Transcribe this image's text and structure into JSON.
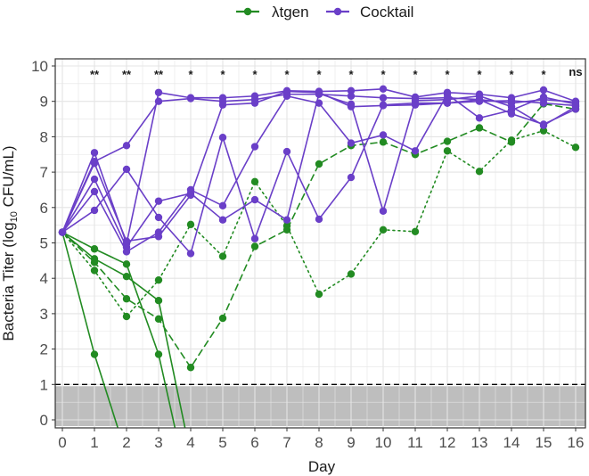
{
  "chart_data": {
    "type": "line",
    "xlabel": "Day",
    "ylabel_main": "Bacteria Titer (",
    "ylabel_log": "log",
    "ylabel_sub": "10",
    "ylabel_tail": " CFU/mL)",
    "xlim": [
      0,
      16
    ],
    "ylim": [
      0,
      10
    ],
    "x_ticks": [
      0,
      1,
      2,
      3,
      4,
      5,
      6,
      7,
      8,
      9,
      10,
      11,
      12,
      13,
      14,
      15,
      16
    ],
    "y_ticks": [
      0,
      1,
      2,
      3,
      4,
      5,
      6,
      7,
      8,
      9,
      10
    ],
    "detection_limit": 1,
    "below_limit_band": [
      0,
      0.95
    ],
    "grid": true,
    "legend_position": "top",
    "colors": {
      "green": "#228B22",
      "purple": "#6A3FC8",
      "band": "#BEBEBE",
      "limit_line": "#000000"
    },
    "legend": [
      {
        "name": "λtgen",
        "color": "#228B22"
      },
      {
        "name": "Cocktail",
        "color": "#6A3FC8"
      }
    ],
    "significance": [
      {
        "day": 1,
        "label": "**"
      },
      {
        "day": 2,
        "label": "**"
      },
      {
        "day": 3,
        "label": "**"
      },
      {
        "day": 4,
        "label": "*"
      },
      {
        "day": 5,
        "label": "*"
      },
      {
        "day": 6,
        "label": "*"
      },
      {
        "day": 7,
        "label": "*"
      },
      {
        "day": 8,
        "label": "*"
      },
      {
        "day": 9,
        "label": "*"
      },
      {
        "day": 10,
        "label": "*"
      },
      {
        "day": 11,
        "label": "*"
      },
      {
        "day": 12,
        "label": "*"
      },
      {
        "day": 13,
        "label": "*"
      },
      {
        "day": 14,
        "label": "*"
      },
      {
        "day": 15,
        "label": "*"
      },
      {
        "day": 16,
        "label": "ns"
      }
    ],
    "series": [
      {
        "group": "λtgen",
        "style": "solid",
        "x": [
          0,
          1,
          2
        ],
        "y": [
          5.3,
          1.85,
          -1.0
        ],
        "points": [
          0,
          1
        ]
      },
      {
        "group": "λtgen",
        "style": "solid",
        "x": [
          0,
          1,
          2,
          3,
          4
        ],
        "y": [
          5.3,
          4.55,
          4.05,
          3.37,
          -1.0
        ],
        "points": [
          0,
          1,
          2,
          3
        ]
      },
      {
        "group": "λtgen",
        "style": "solid",
        "x": [
          0,
          1,
          2,
          3,
          3.7
        ],
        "y": [
          5.3,
          4.83,
          4.4,
          1.85,
          -1.0
        ],
        "points": [
          0,
          1,
          2,
          3
        ]
      },
      {
        "group": "λtgen",
        "style": "dashed",
        "x": [
          0,
          1,
          2,
          3,
          4,
          5,
          6,
          7,
          8,
          9,
          10,
          11,
          12,
          13,
          14,
          15,
          16
        ],
        "y": [
          5.3,
          4.45,
          3.42,
          2.85,
          1.48,
          2.87,
          4.9,
          5.37,
          7.23,
          7.75,
          7.85,
          7.5,
          7.87,
          8.25,
          7.85,
          8.93,
          8.78
        ]
      },
      {
        "group": "λtgen",
        "style": "dotted",
        "x": [
          0,
          1,
          2,
          3,
          4,
          5,
          6,
          7,
          8,
          9,
          10,
          11,
          12,
          13,
          14,
          15,
          16
        ],
        "y": [
          5.3,
          4.22,
          2.92,
          3.95,
          5.52,
          4.62,
          6.73,
          5.48,
          3.55,
          4.12,
          5.37,
          5.32,
          7.6,
          7.02,
          7.9,
          8.17,
          7.7
        ]
      },
      {
        "group": "Cocktail",
        "style": "solid",
        "x": [
          0,
          1,
          2,
          3,
          4,
          5,
          6,
          7,
          8,
          9,
          10,
          11,
          12,
          13,
          14,
          15,
          16
        ],
        "y": [
          5.3,
          7.55,
          4.98,
          9.25,
          9.1,
          9.1,
          9.15,
          9.3,
          9.28,
          9.3,
          9.35,
          9.12,
          9.25,
          9.2,
          9.1,
          9.32,
          9.0
        ]
      },
      {
        "group": "Cocktail",
        "style": "solid",
        "x": [
          0,
          1,
          2,
          3,
          4,
          5,
          6,
          7,
          8,
          9,
          10,
          11,
          12,
          13,
          14,
          15,
          16
        ],
        "y": [
          5.3,
          7.3,
          7.75,
          9.0,
          9.08,
          9.0,
          9.05,
          9.2,
          9.2,
          9.15,
          9.1,
          9.08,
          9.1,
          9.05,
          8.95,
          9.05,
          8.98
        ]
      },
      {
        "group": "Cocktail",
        "style": "solid",
        "x": [
          0,
          1,
          2,
          3,
          4,
          5,
          6,
          7,
          8,
          9,
          10,
          11,
          12,
          13,
          14,
          15,
          16
        ],
        "y": [
          5.3,
          6.45,
          4.75,
          5.3,
          6.5,
          6.05,
          7.72,
          9.15,
          8.95,
          7.82,
          8.05,
          7.6,
          9.2,
          8.53,
          8.75,
          9.12,
          8.92
        ]
      },
      {
        "group": "Cocktail",
        "style": "solid",
        "x": [
          0,
          1,
          2,
          3,
          4,
          5,
          6,
          7,
          8,
          9,
          10,
          11,
          12,
          13,
          14,
          15,
          16
        ],
        "y": [
          5.3,
          5.92,
          7.08,
          5.72,
          4.7,
          7.98,
          5.12,
          7.58,
          5.67,
          6.85,
          8.9,
          8.95,
          8.95,
          9.05,
          8.65,
          8.35,
          8.78
        ]
      },
      {
        "group": "Cocktail",
        "style": "solid",
        "x": [
          0,
          1,
          2,
          3,
          4,
          5,
          6,
          7,
          8,
          9,
          10,
          11,
          12,
          13,
          14,
          15,
          16
        ],
        "y": [
          5.3,
          6.8,
          4.88,
          6.18,
          6.4,
          5.65,
          6.22,
          5.65,
          9.22,
          8.92,
          5.9,
          9.02,
          9.05,
          9.15,
          8.85,
          8.32,
          8.85
        ]
      },
      {
        "group": "Cocktail",
        "style": "solid",
        "x": [
          0,
          1,
          2,
          3,
          4,
          5,
          6,
          7,
          8,
          9,
          10,
          11,
          12,
          13,
          14,
          15,
          16
        ],
        "y": [
          5.3,
          7.25,
          5.05,
          5.18,
          6.35,
          8.9,
          8.95,
          9.28,
          9.25,
          8.85,
          8.88,
          8.9,
          8.95,
          9.0,
          9.02,
          8.95,
          8.88
        ]
      }
    ]
  }
}
